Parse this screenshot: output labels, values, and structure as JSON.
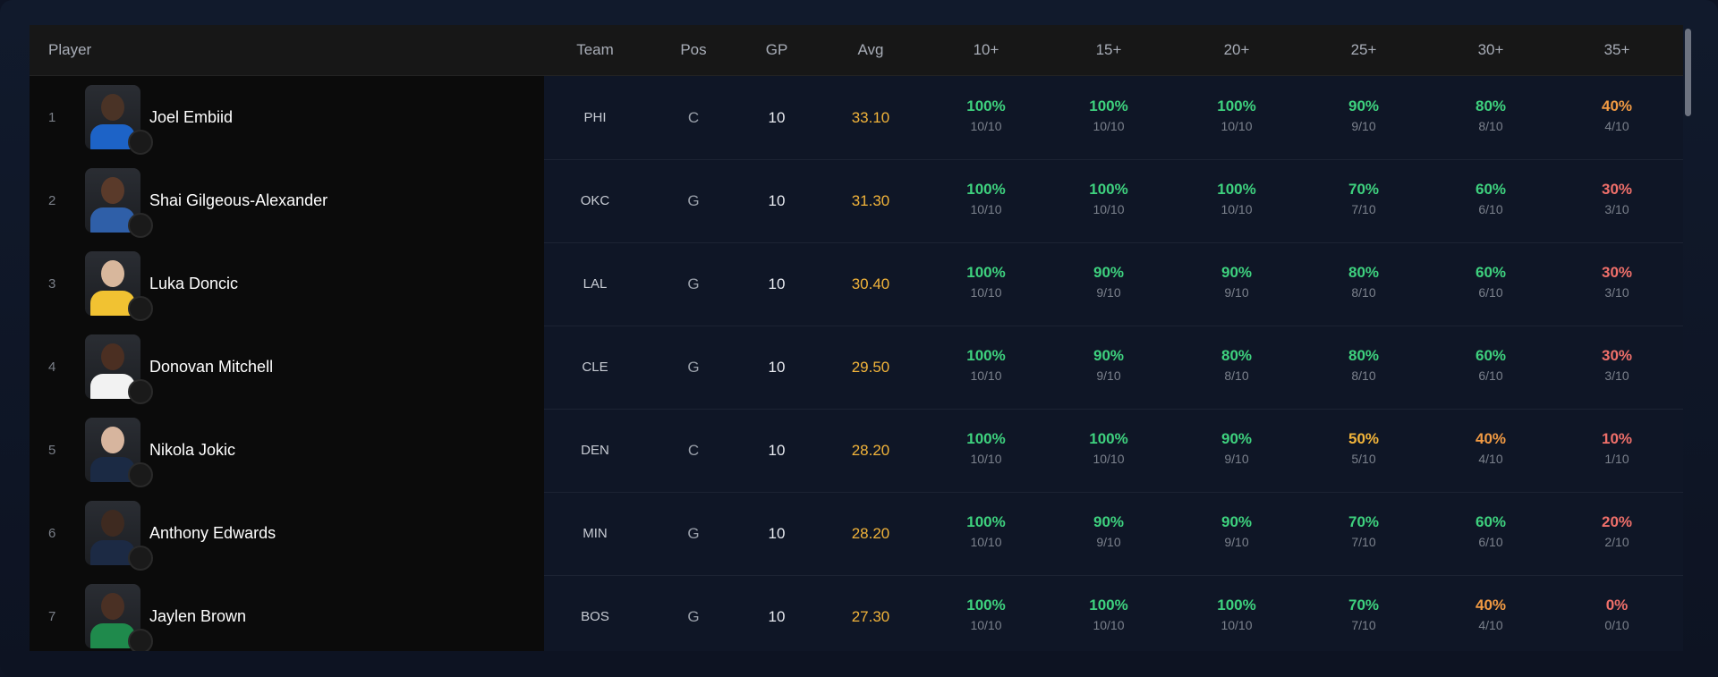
{
  "columns": {
    "player": "Player",
    "team": "Team",
    "pos": "Pos",
    "gp": "GP",
    "avg": "Avg",
    "thresholds": [
      "10+",
      "15+",
      "20+",
      "25+",
      "30+",
      "35+"
    ]
  },
  "colors": {
    "green": "#3ed17e",
    "yellow": "#f2b43a",
    "orange": "#f19a43",
    "red": "#ef6f6a"
  },
  "rows": [
    {
      "rank": "1",
      "name": "Joel Embiid",
      "team": "PHI",
      "pos": "C",
      "gp": "10",
      "avg": "33.10",
      "logo_icon": "76ers-logo-icon",
      "jersey": "#1d63c7",
      "skin": "#4a3326",
      "stats": [
        [
          "100%",
          "10/10",
          "g"
        ],
        [
          "100%",
          "10/10",
          "g"
        ],
        [
          "100%",
          "10/10",
          "g"
        ],
        [
          "90%",
          "9/10",
          "g"
        ],
        [
          "80%",
          "8/10",
          "g"
        ],
        [
          "40%",
          "4/10",
          "o"
        ]
      ]
    },
    {
      "rank": "2",
      "name": "Shai Gilgeous-Alexander",
      "team": "OKC",
      "pos": "G",
      "gp": "10",
      "avg": "31.30",
      "logo_icon": "thunder-logo-icon",
      "jersey": "#2f5fa8",
      "skin": "#5a3a2a",
      "stats": [
        [
          "100%",
          "10/10",
          "g"
        ],
        [
          "100%",
          "10/10",
          "g"
        ],
        [
          "100%",
          "10/10",
          "g"
        ],
        [
          "70%",
          "7/10",
          "g"
        ],
        [
          "60%",
          "6/10",
          "g"
        ],
        [
          "30%",
          "3/10",
          "r"
        ]
      ]
    },
    {
      "rank": "3",
      "name": "Luka Doncic",
      "team": "LAL",
      "pos": "G",
      "gp": "10",
      "avg": "30.40",
      "logo_icon": "lakers-logo-icon",
      "jersey": "#f1c232",
      "skin": "#d8b79c",
      "stats": [
        [
          "100%",
          "10/10",
          "g"
        ],
        [
          "90%",
          "9/10",
          "g"
        ],
        [
          "90%",
          "9/10",
          "g"
        ],
        [
          "80%",
          "8/10",
          "g"
        ],
        [
          "60%",
          "6/10",
          "g"
        ],
        [
          "30%",
          "3/10",
          "r"
        ]
      ]
    },
    {
      "rank": "4",
      "name": "Donovan Mitchell",
      "team": "CLE",
      "pos": "G",
      "gp": "10",
      "avg": "29.50",
      "logo_icon": "cavaliers-logo-icon",
      "jersey": "#f2f2f2",
      "skin": "#4b2f22",
      "stats": [
        [
          "100%",
          "10/10",
          "g"
        ],
        [
          "90%",
          "9/10",
          "g"
        ],
        [
          "80%",
          "8/10",
          "g"
        ],
        [
          "80%",
          "8/10",
          "g"
        ],
        [
          "60%",
          "6/10",
          "g"
        ],
        [
          "30%",
          "3/10",
          "r"
        ]
      ]
    },
    {
      "rank": "5",
      "name": "Nikola Jokic",
      "team": "DEN",
      "pos": "C",
      "gp": "10",
      "avg": "28.20",
      "logo_icon": "nuggets-logo-icon",
      "jersey": "#1b2a44",
      "skin": "#d7b59e",
      "stats": [
        [
          "100%",
          "10/10",
          "g"
        ],
        [
          "100%",
          "10/10",
          "g"
        ],
        [
          "90%",
          "9/10",
          "g"
        ],
        [
          "50%",
          "5/10",
          "y"
        ],
        [
          "40%",
          "4/10",
          "o"
        ],
        [
          "10%",
          "1/10",
          "r"
        ]
      ]
    },
    {
      "rank": "6",
      "name": "Anthony Edwards",
      "team": "MIN",
      "pos": "G",
      "gp": "10",
      "avg": "28.20",
      "logo_icon": "timberwolves-logo-icon",
      "jersey": "#1c2a44",
      "skin": "#3e2a20",
      "stats": [
        [
          "100%",
          "10/10",
          "g"
        ],
        [
          "90%",
          "9/10",
          "g"
        ],
        [
          "90%",
          "9/10",
          "g"
        ],
        [
          "70%",
          "7/10",
          "g"
        ],
        [
          "60%",
          "6/10",
          "g"
        ],
        [
          "20%",
          "2/10",
          "r"
        ]
      ]
    },
    {
      "rank": "7",
      "name": "Jaylen Brown",
      "team": "BOS",
      "pos": "G",
      "gp": "10",
      "avg": "27.30",
      "logo_icon": "celtics-logo-icon",
      "jersey": "#1f8a4c",
      "skin": "#4a3024",
      "stats": [
        [
          "100%",
          "10/10",
          "g"
        ],
        [
          "100%",
          "10/10",
          "g"
        ],
        [
          "100%",
          "10/10",
          "g"
        ],
        [
          "70%",
          "7/10",
          "g"
        ],
        [
          "40%",
          "4/10",
          "o"
        ],
        [
          "0%",
          "0/10",
          "r"
        ]
      ]
    }
  ]
}
